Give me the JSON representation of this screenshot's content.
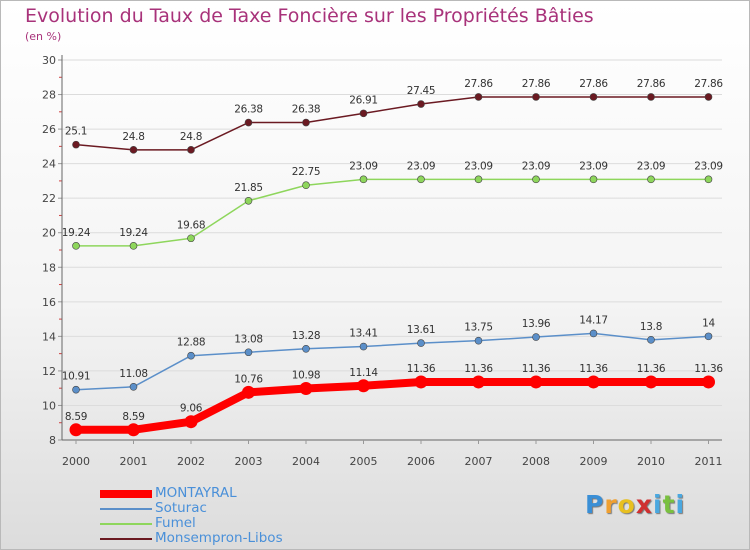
{
  "title": "Evolution du Taux de Taxe Foncière sur les Propriétés Bâties",
  "unit": "(en %)",
  "chart_data": {
    "type": "line",
    "x": [
      "2000",
      "2001",
      "2002",
      "2003",
      "2004",
      "2005",
      "2006",
      "2007",
      "2008",
      "2009",
      "2010",
      "2011"
    ],
    "ylim": [
      8,
      30
    ],
    "yticks": [
      8,
      10,
      12,
      14,
      16,
      18,
      20,
      22,
      24,
      26,
      28,
      30
    ],
    "grid": true,
    "series": [
      {
        "name": "Monsempron-Libos",
        "color": "#6b1a22",
        "values": [
          25.1,
          24.8,
          24.8,
          26.38,
          26.38,
          26.91,
          27.45,
          27.86,
          27.86,
          27.86,
          27.86,
          27.86
        ],
        "labels": [
          "25.1",
          "24.8",
          "24.8",
          "26.38",
          "26.38",
          "26.91",
          "27.45",
          "27.86",
          "27.86",
          "27.86",
          "27.86",
          "27.86"
        ]
      },
      {
        "name": "Fumel",
        "color": "#8ed65c",
        "values": [
          19.24,
          19.24,
          19.68,
          21.85,
          22.75,
          23.09,
          23.09,
          23.09,
          23.09,
          23.09,
          23.09,
          23.09
        ],
        "labels": [
          "19.24",
          "19.24",
          "19.68",
          "21.85",
          "22.75",
          "23.09",
          "23.09",
          "23.09",
          "23.09",
          "23.09",
          "23.09",
          "23.09"
        ]
      },
      {
        "name": "Soturac",
        "color": "#5b8fc9",
        "values": [
          10.91,
          11.08,
          12.88,
          13.08,
          13.28,
          13.41,
          13.61,
          13.75,
          13.96,
          14.17,
          13.8,
          14
        ],
        "labels": [
          "10.91",
          "11.08",
          "12.88",
          "13.08",
          "13.28",
          "13.41",
          "13.61",
          "13.75",
          "13.96",
          "14.17",
          "13.8",
          "14"
        ]
      },
      {
        "name": "MONTAYRAL",
        "color": "#ff0000",
        "values": [
          8.59,
          8.59,
          9.06,
          10.76,
          10.98,
          11.14,
          11.36,
          11.36,
          11.36,
          11.36,
          11.36,
          11.36
        ],
        "labels": [
          "8.59",
          "8.59",
          "9.06",
          "10.76",
          "10.98",
          "11.14",
          "11.36",
          "11.36",
          "11.36",
          "11.36",
          "11.36",
          "11.36"
        ]
      }
    ]
  },
  "legend": [
    {
      "name": "MONTAYRAL",
      "color": "#ff0000",
      "thick": true
    },
    {
      "name": "Soturac",
      "color": "#5b8fc9",
      "thick": false
    },
    {
      "name": "Fumel",
      "color": "#8ed65c",
      "thick": false
    },
    {
      "name": "Monsempron-Libos",
      "color": "#6b1a22",
      "thick": false
    }
  ],
  "logo": {
    "letters": [
      {
        "char": "P",
        "color": "#3a8fd6"
      },
      {
        "char": "r",
        "color": "#f0a030"
      },
      {
        "char": "o",
        "color": "#e8c020"
      },
      {
        "char": "x",
        "color": "#d03030"
      },
      {
        "char": "i",
        "color": "#4aa8e0"
      },
      {
        "char": "t",
        "color": "#7ac040"
      },
      {
        "char": "i",
        "color": "#4aa8e0"
      }
    ]
  }
}
